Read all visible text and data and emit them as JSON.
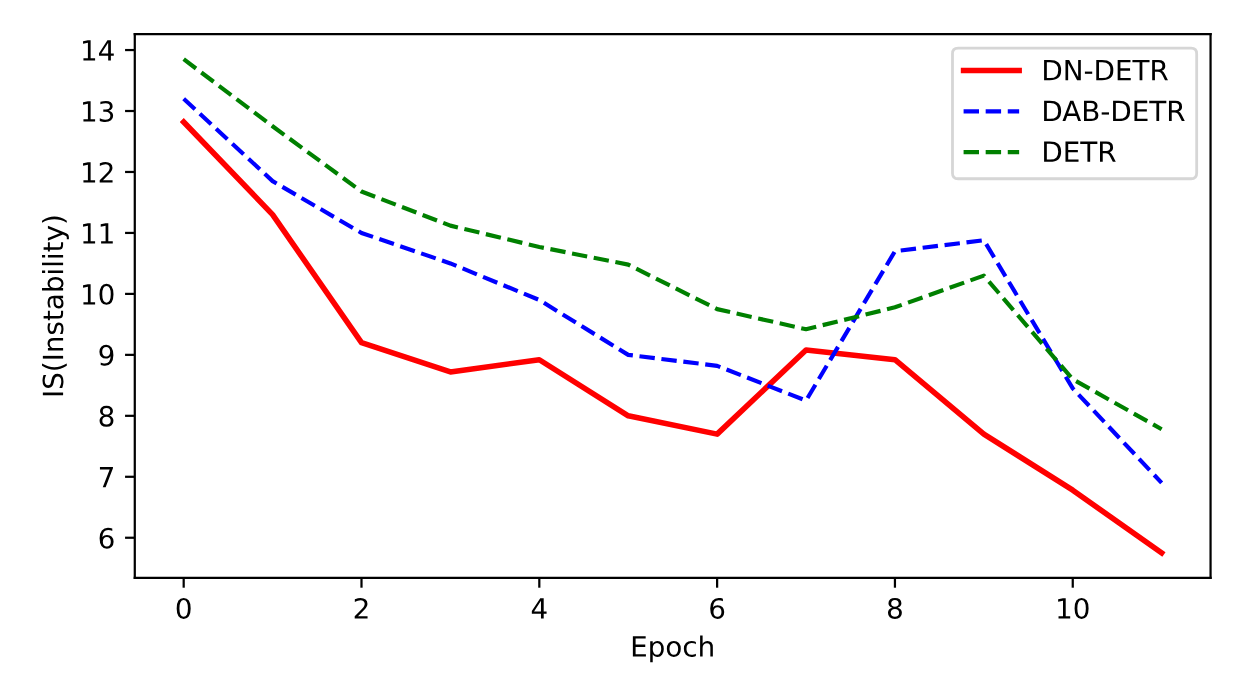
{
  "chart_data": {
    "type": "line",
    "xlabel": "Epoch",
    "ylabel": "IS(Instability)",
    "x": [
      0,
      1,
      2,
      3,
      4,
      5,
      6,
      7,
      8,
      9,
      10,
      11
    ],
    "series": [
      {
        "name": "DN-DETR",
        "color": "#ff0000",
        "line_style": "solid",
        "values": [
          12.82,
          11.3,
          9.2,
          8.72,
          8.92,
          8.0,
          7.7,
          9.08,
          8.92,
          7.7,
          6.78,
          5.75
        ]
      },
      {
        "name": "DAB-DETR",
        "color": "#0000ff",
        "line_style": "dashed",
        "values": [
          13.2,
          11.85,
          11.0,
          10.5,
          9.9,
          9.0,
          8.82,
          8.25,
          10.7,
          10.88,
          8.45,
          6.9
        ]
      },
      {
        "name": "DETR",
        "color": "#008000",
        "line_style": "dashed",
        "values": [
          13.85,
          12.75,
          11.68,
          11.12,
          10.77,
          10.48,
          9.75,
          9.42,
          9.78,
          10.3,
          8.6,
          7.78
        ]
      }
    ],
    "xlim": [
      -0.55,
      11.55
    ],
    "ylim": [
      5.34,
      14.26
    ],
    "xticks": [
      0,
      2,
      4,
      6,
      8,
      10
    ],
    "yticks": [
      6,
      7,
      8,
      9,
      10,
      11,
      12,
      13,
      14
    ],
    "legend": "top right",
    "grid": false
  }
}
